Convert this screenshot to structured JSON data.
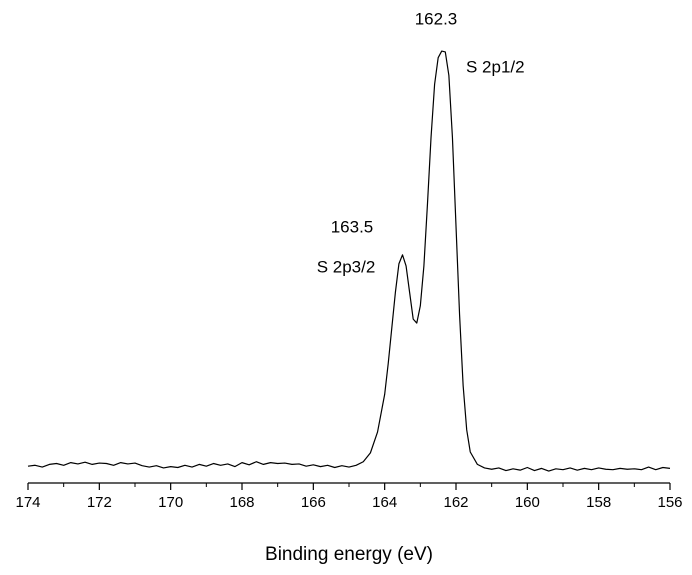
{
  "chart_data": {
    "type": "line",
    "x_label": "Binding energy (eV)",
    "annotations": [
      "162.3",
      "S 2p1/2",
      "163.5",
      "S 2p3/2"
    ],
    "xlim": [
      174,
      156
    ],
    "ylim": [
      0,
      100
    ],
    "xticks": [
      174,
      172,
      170,
      168,
      166,
      164,
      162,
      160,
      158,
      156
    ],
    "xminor_ticks": [
      173,
      171,
      169,
      167,
      165,
      163,
      161,
      159,
      157
    ],
    "color": "#000000",
    "x": [
      174.0,
      173.8,
      173.6,
      173.4,
      173.2,
      173.0,
      172.8,
      172.6,
      172.4,
      172.2,
      172.0,
      171.8,
      171.6,
      171.4,
      171.2,
      171.0,
      170.8,
      170.6,
      170.4,
      170.2,
      170.0,
      169.8,
      169.6,
      169.4,
      169.2,
      169.0,
      168.8,
      168.6,
      168.4,
      168.2,
      168.0,
      167.8,
      167.6,
      167.4,
      167.2,
      167.0,
      166.8,
      166.6,
      166.4,
      166.2,
      166.0,
      165.8,
      165.6,
      165.4,
      165.2,
      165.0,
      164.8,
      164.6,
      164.4,
      164.2,
      164.0,
      163.9,
      163.8,
      163.7,
      163.6,
      163.5,
      163.4,
      163.3,
      163.2,
      163.1,
      163.0,
      162.9,
      162.8,
      162.7,
      162.6,
      162.5,
      162.4,
      162.3,
      162.2,
      162.1,
      162.0,
      161.9,
      161.8,
      161.7,
      161.6,
      161.4,
      161.2,
      161.0,
      160.8,
      160.6,
      160.4,
      160.2,
      160.0,
      159.8,
      159.6,
      159.4,
      159.2,
      159.0,
      158.8,
      158.6,
      158.4,
      158.2,
      158.0,
      157.8,
      157.6,
      157.4,
      157.2,
      157.0,
      156.8,
      156.6,
      156.4,
      156.2,
      156.0
    ],
    "values": [
      3.8,
      4.0,
      3.6,
      4.2,
      4.4,
      4.0,
      4.6,
      4.3,
      4.7,
      4.2,
      4.5,
      4.4,
      4.0,
      4.6,
      4.3,
      4.5,
      3.9,
      3.6,
      3.9,
      3.4,
      3.7,
      3.5,
      4.0,
      3.6,
      4.2,
      3.8,
      4.4,
      4.0,
      4.3,
      3.7,
      4.6,
      4.1,
      4.8,
      4.2,
      4.6,
      4.4,
      4.5,
      4.2,
      4.3,
      3.8,
      4.1,
      3.7,
      4.0,
      3.5,
      3.9,
      3.6,
      4.0,
      4.8,
      6.8,
      11.5,
      20,
      27,
      35,
      43,
      49.5,
      51.5,
      49,
      43,
      37,
      36.1,
      40,
      49,
      63,
      78,
      90,
      96,
      97.5,
      97.3,
      92,
      78,
      58,
      38,
      22,
      12,
      7,
      4.2,
      3.4,
      3.1,
      3.4,
      2.8,
      3.2,
      2.9,
      3.5,
      2.8,
      3.3,
      2.7,
      3.2,
      3.0,
      3.4,
      2.9,
      3.3,
      3.0,
      3.4,
      3.1,
      3.0,
      3.3,
      3.1,
      3.2,
      3.0,
      3.6,
      3.0,
      3.5,
      3.3
    ]
  }
}
